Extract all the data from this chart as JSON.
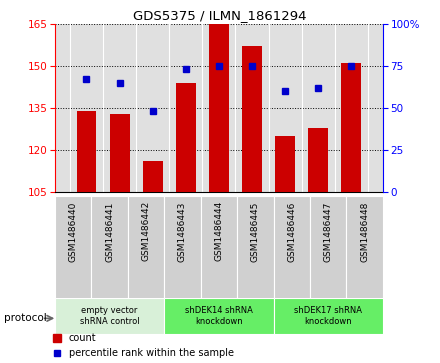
{
  "title": "GDS5375 / ILMN_1861294",
  "samples": [
    "GSM1486440",
    "GSM1486441",
    "GSM1486442",
    "GSM1486443",
    "GSM1486444",
    "GSM1486445",
    "GSM1486446",
    "GSM1486447",
    "GSM1486448"
  ],
  "counts": [
    134,
    133,
    116,
    144,
    165,
    157,
    125,
    128,
    151
  ],
  "percentile_ranks": [
    67,
    65,
    48,
    73,
    75,
    75,
    60,
    62,
    75
  ],
  "ylim_left": [
    105,
    165
  ],
  "yticks_left": [
    105,
    120,
    135,
    150,
    165
  ],
  "ylim_right": [
    0,
    100
  ],
  "yticks_right": [
    0,
    25,
    50,
    75,
    100
  ],
  "bar_color": "#cc0000",
  "dot_color": "#0000cc",
  "bar_width": 0.6,
  "group0_color": "#d8f0d8",
  "group1_color": "#66ee66",
  "groups": [
    {
      "label": "empty vector\nshRNA control",
      "start": 0,
      "end": 3,
      "colorkey": "group0_color"
    },
    {
      "label": "shDEK14 shRNA\nknockdown",
      "start": 3,
      "end": 6,
      "colorkey": "group1_color"
    },
    {
      "label": "shDEK17 shRNA\nknockdown",
      "start": 6,
      "end": 9,
      "colorkey": "group1_color"
    }
  ],
  "protocol_label": "protocol",
  "legend_count_label": "count",
  "legend_percentile_label": "percentile rank within the sample",
  "plot_bg_color": "#e0e0e0",
  "xtick_bg_color": "#d0d0d0"
}
